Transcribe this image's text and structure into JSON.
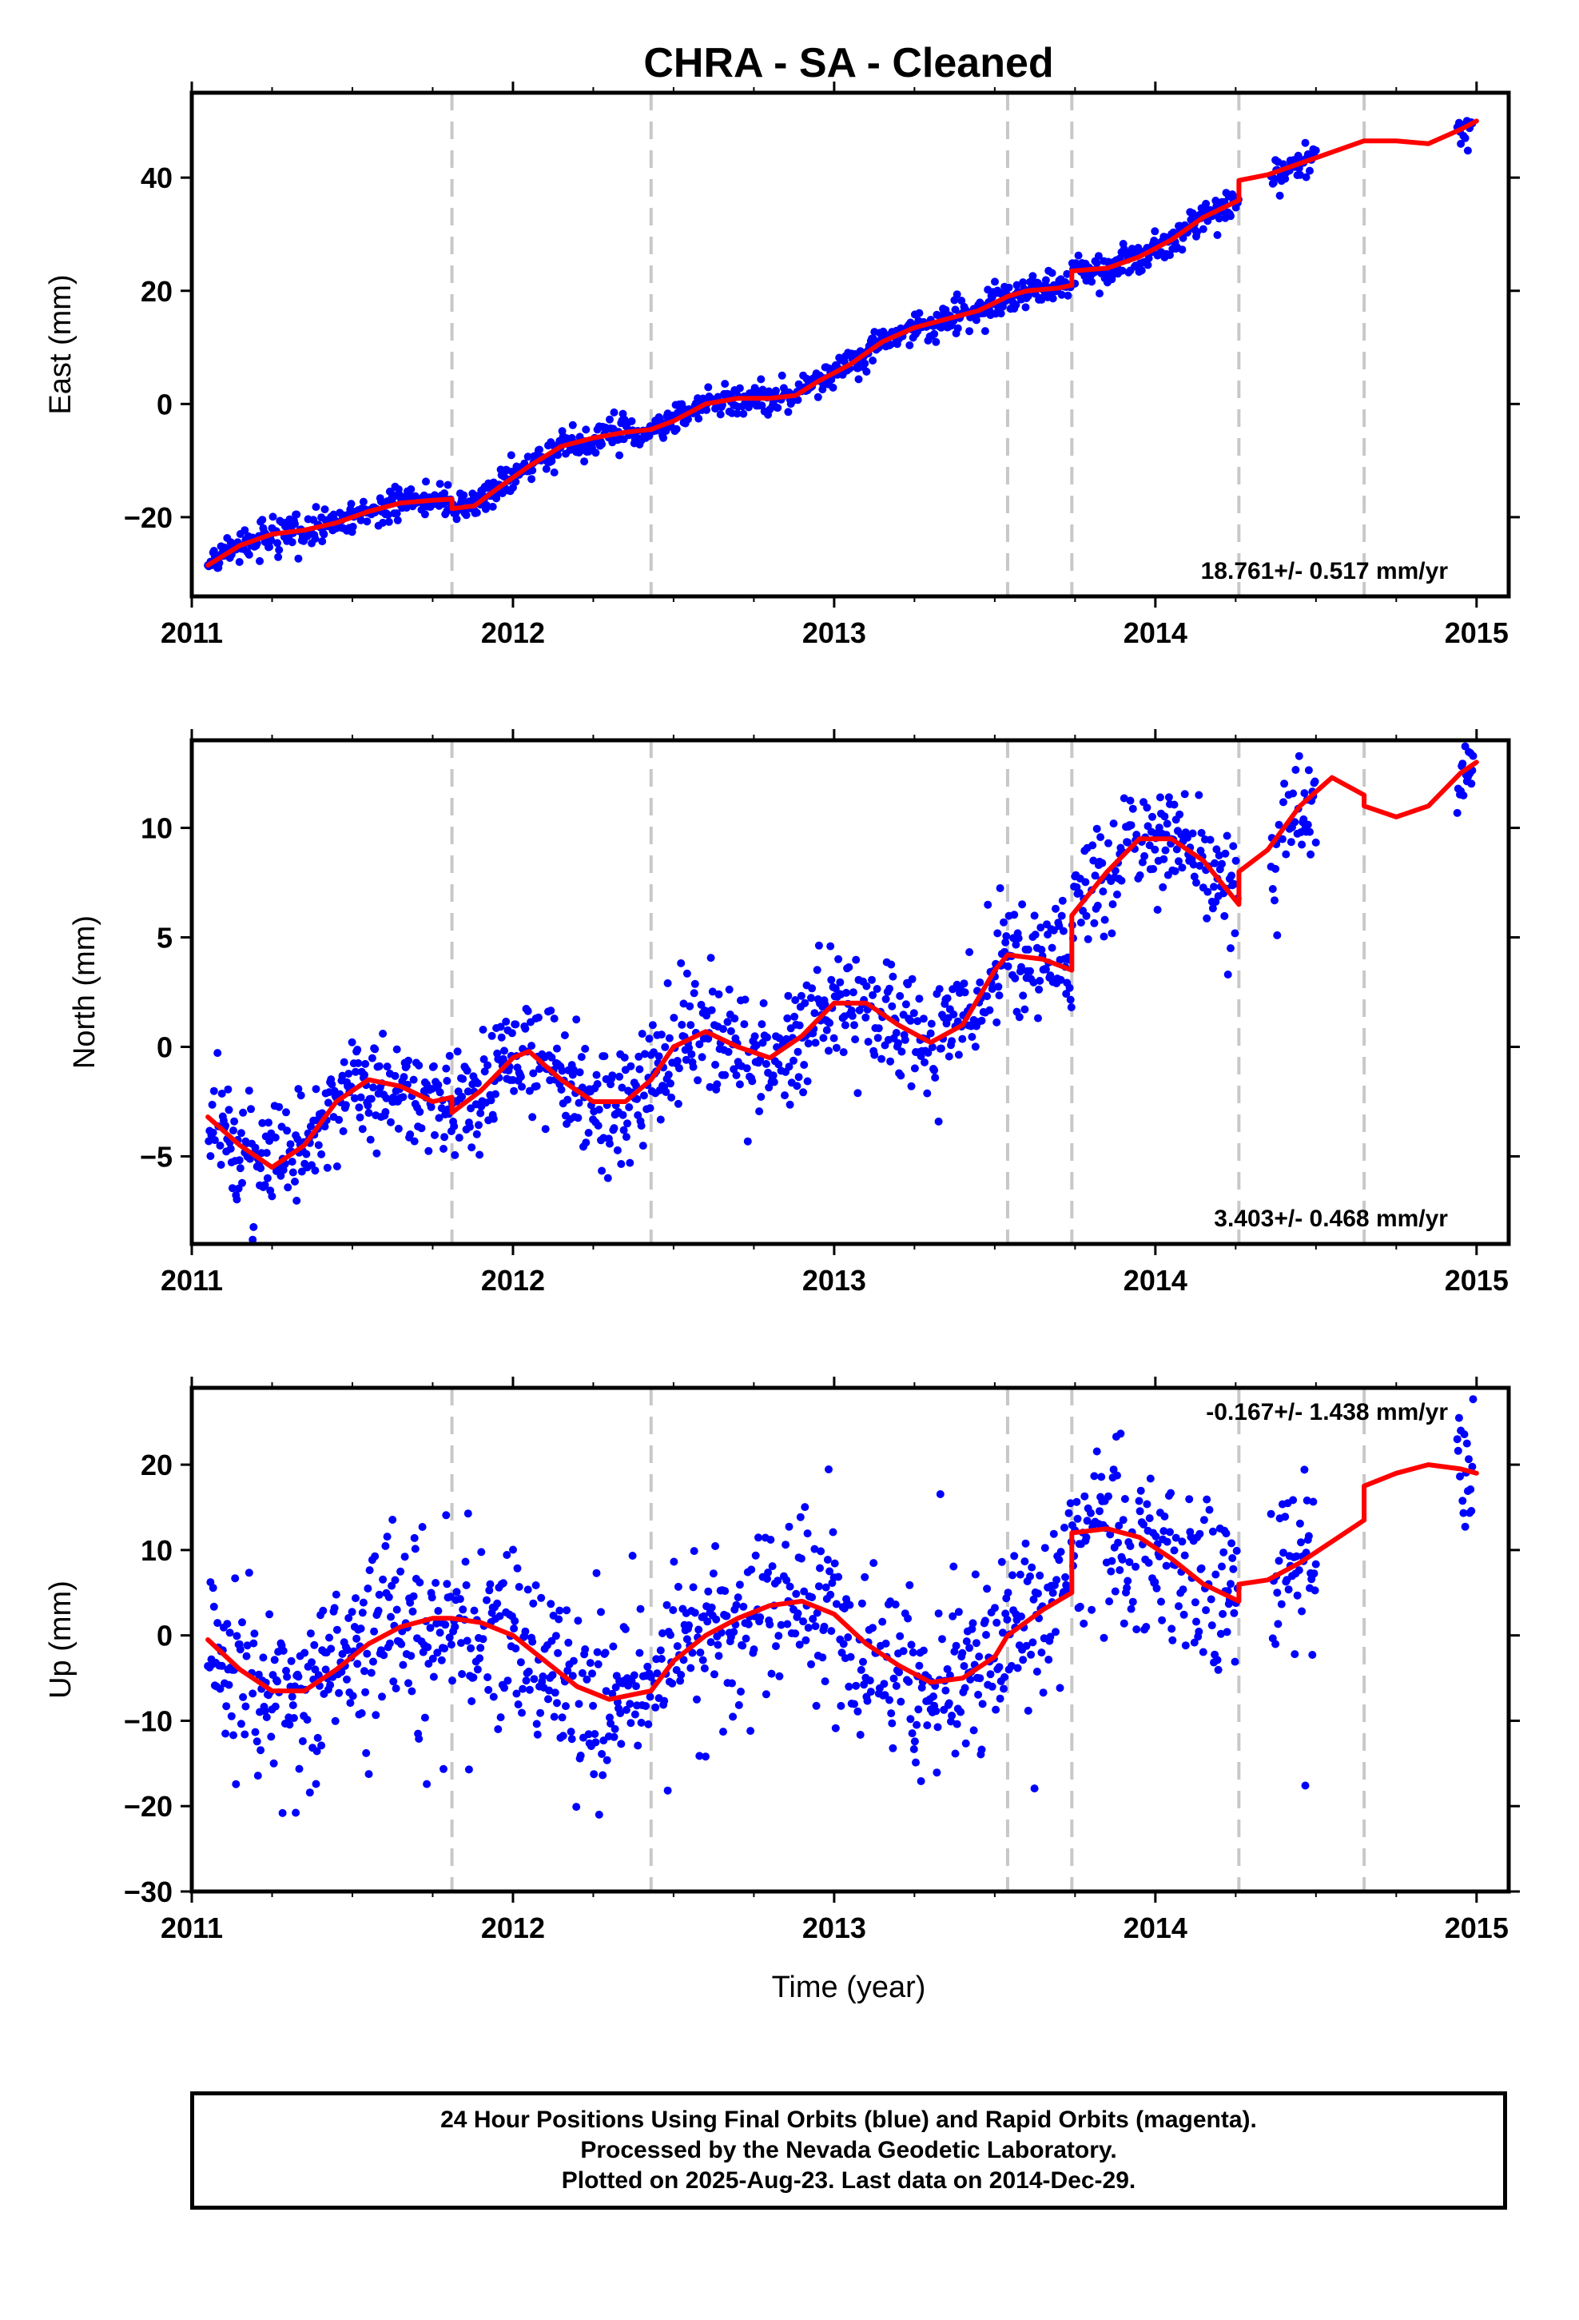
{
  "title": "CHRA  - SA - Cleaned",
  "footer": {
    "line1": "24 Hour Positions Using Final Orbits (blue) and Rapid Orbits (magenta).",
    "line2": "Processed by the Nevada Geodetic Laboratory.",
    "line3": "Plotted on 2025-Aug-23. Last data on 2014-Dec-29."
  },
  "colors": {
    "points": "#0000ff",
    "model": "#ff0000",
    "breaks": "#c8c8c8",
    "frame": "#000000"
  },
  "chart_data": [
    {
      "type": "scatter",
      "name": "east",
      "ylabel": "East (mm)",
      "xlabel": "",
      "xlim": [
        2011.0,
        2015.1
      ],
      "ylim": [
        -34,
        55
      ],
      "xticks": [
        "2011",
        "2012",
        "2013",
        "2014",
        "2015"
      ],
      "yticks": [
        "−20",
        "0",
        "20",
        "40"
      ],
      "ytick_values": [
        -20,
        0,
        20,
        40
      ],
      "rate_label": "18.761+/- 0.517 mm/yr",
      "rate_position": "bottom-right",
      "breaks": [
        2011.81,
        2012.43,
        2013.54,
        2013.74,
        2014.26,
        2014.65
      ],
      "data_ranges": [
        [
          2011.05,
          2014.26
        ],
        [
          2014.36,
          2014.5
        ],
        [
          2014.94,
          2014.99
        ]
      ],
      "points_summary": "daily positions closely following the model; scatter about 1.5 mm",
      "model": [
        [
          2011.05,
          -28.5
        ],
        [
          2011.15,
          -25.0
        ],
        [
          2011.25,
          -23.0
        ],
        [
          2011.35,
          -22.3
        ],
        [
          2011.45,
          -21.0
        ],
        [
          2011.55,
          -19.0
        ],
        [
          2011.65,
          -17.5
        ],
        [
          2011.75,
          -17.0
        ],
        [
          2011.81,
          -16.8
        ],
        [
          2011.81,
          -18.5
        ],
        [
          2011.88,
          -18.0
        ],
        [
          2011.95,
          -15.0
        ],
        [
          2012.05,
          -11.0
        ],
        [
          2012.15,
          -7.5
        ],
        [
          2012.25,
          -6.0
        ],
        [
          2012.35,
          -5.0
        ],
        [
          2012.43,
          -4.5
        ],
        [
          2012.5,
          -3.0
        ],
        [
          2012.6,
          0.0
        ],
        [
          2012.7,
          1.0
        ],
        [
          2012.8,
          1.0
        ],
        [
          2012.88,
          1.5
        ],
        [
          2012.95,
          4.0
        ],
        [
          2013.05,
          7.0
        ],
        [
          2013.15,
          11.0
        ],
        [
          2013.25,
          13.5
        ],
        [
          2013.35,
          15.0
        ],
        [
          2013.45,
          16.5
        ],
        [
          2013.54,
          19.0
        ],
        [
          2013.6,
          20.0
        ],
        [
          2013.7,
          20.5
        ],
        [
          2013.74,
          21.0
        ],
        [
          2013.74,
          23.5
        ],
        [
          2013.85,
          24.0
        ],
        [
          2013.95,
          26.0
        ],
        [
          2014.05,
          29.0
        ],
        [
          2014.15,
          33.0
        ],
        [
          2014.26,
          36.0
        ],
        [
          2014.26,
          39.5
        ],
        [
          2014.35,
          40.5
        ],
        [
          2014.45,
          42.5
        ],
        [
          2014.55,
          44.5
        ],
        [
          2014.65,
          46.5
        ],
        [
          2014.75,
          46.5
        ],
        [
          2014.85,
          46.0
        ],
        [
          2014.95,
          48.5
        ],
        [
          2015.0,
          50.0
        ]
      ]
    },
    {
      "type": "scatter",
      "name": "north",
      "ylabel": "North (mm)",
      "xlabel": "",
      "xlim": [
        2011.0,
        2015.1
      ],
      "ylim": [
        -9,
        14
      ],
      "xticks": [
        "2011",
        "2012",
        "2013",
        "2014",
        "2015"
      ],
      "yticks": [
        "−5",
        "0",
        "5",
        "10"
      ],
      "ytick_values": [
        -5,
        0,
        5,
        10
      ],
      "rate_label": "3.403+/- 0.468 mm/yr",
      "rate_position": "bottom-right",
      "breaks": [
        2011.81,
        2012.43,
        2013.54,
        2013.74,
        2014.26,
        2014.65
      ],
      "data_ranges": [
        [
          2011.05,
          2014.26
        ],
        [
          2014.36,
          2014.5
        ],
        [
          2014.94,
          2014.99
        ]
      ],
      "points_summary": "daily positions with scatter about 1.3 mm around the model",
      "model": [
        [
          2011.05,
          -3.2
        ],
        [
          2011.15,
          -4.5
        ],
        [
          2011.25,
          -5.5
        ],
        [
          2011.35,
          -4.5
        ],
        [
          2011.45,
          -2.5
        ],
        [
          2011.55,
          -1.5
        ],
        [
          2011.65,
          -1.8
        ],
        [
          2011.75,
          -2.5
        ],
        [
          2011.81,
          -2.3
        ],
        [
          2011.81,
          -3.0
        ],
        [
          2011.9,
          -2.0
        ],
        [
          2012.0,
          -0.5
        ],
        [
          2012.05,
          -0.2
        ],
        [
          2012.15,
          -1.5
        ],
        [
          2012.25,
          -2.5
        ],
        [
          2012.35,
          -2.5
        ],
        [
          2012.43,
          -1.5
        ],
        [
          2012.5,
          0.0
        ],
        [
          2012.6,
          0.7
        ],
        [
          2012.7,
          0.0
        ],
        [
          2012.8,
          -0.5
        ],
        [
          2012.9,
          0.5
        ],
        [
          2013.0,
          2.0
        ],
        [
          2013.1,
          2.0
        ],
        [
          2013.2,
          1.0
        ],
        [
          2013.3,
          0.2
        ],
        [
          2013.4,
          1.0
        ],
        [
          2013.5,
          3.5
        ],
        [
          2013.54,
          4.2
        ],
        [
          2013.65,
          4.0
        ],
        [
          2013.74,
          3.5
        ],
        [
          2013.74,
          6.0
        ],
        [
          2013.85,
          8.0
        ],
        [
          2013.95,
          9.5
        ],
        [
          2014.05,
          9.5
        ],
        [
          2014.15,
          8.5
        ],
        [
          2014.26,
          6.5
        ],
        [
          2014.26,
          8.0
        ],
        [
          2014.35,
          9.0
        ],
        [
          2014.45,
          11.0
        ],
        [
          2014.55,
          12.3
        ],
        [
          2014.65,
          11.5
        ],
        [
          2014.65,
          11.0
        ],
        [
          2014.75,
          10.5
        ],
        [
          2014.85,
          11.0
        ],
        [
          2014.95,
          12.5
        ],
        [
          2015.0,
          13.0
        ]
      ]
    },
    {
      "type": "scatter",
      "name": "up",
      "ylabel": "Up (mm)",
      "xlabel": "Time (year)",
      "xlim": [
        2011.0,
        2015.1
      ],
      "ylim": [
        -30,
        29
      ],
      "xticks": [
        "2011",
        "2012",
        "2013",
        "2014",
        "2015"
      ],
      "yticks": [
        "−30",
        "−20",
        "−10",
        "0",
        "10",
        "20"
      ],
      "ytick_values": [
        -30,
        -20,
        -10,
        0,
        10,
        20
      ],
      "rate_label": "-0.167+/- 1.438 mm/yr",
      "rate_position": "top-right",
      "breaks": [
        2011.81,
        2012.43,
        2013.54,
        2013.74,
        2014.26,
        2014.65
      ],
      "data_ranges": [
        [
          2011.05,
          2014.26
        ],
        [
          2014.36,
          2014.5
        ],
        [
          2014.94,
          2014.99
        ]
      ],
      "points_summary": "daily positions with scatter about 5 mm around the model",
      "model": [
        [
          2011.05,
          -0.5
        ],
        [
          2011.15,
          -4.0
        ],
        [
          2011.25,
          -6.5
        ],
        [
          2011.35,
          -6.5
        ],
        [
          2011.45,
          -4.0
        ],
        [
          2011.55,
          -1.0
        ],
        [
          2011.65,
          1.0
        ],
        [
          2011.75,
          2.0
        ],
        [
          2011.81,
          2.0
        ],
        [
          2011.9,
          1.5
        ],
        [
          2012.0,
          0.0
        ],
        [
          2012.1,
          -3.0
        ],
        [
          2012.2,
          -6.0
        ],
        [
          2012.3,
          -7.5
        ],
        [
          2012.43,
          -6.5
        ],
        [
          2012.5,
          -3.0
        ],
        [
          2012.6,
          0.0
        ],
        [
          2012.7,
          2.0
        ],
        [
          2012.8,
          3.5
        ],
        [
          2012.9,
          4.0
        ],
        [
          2013.0,
          2.5
        ],
        [
          2013.1,
          -1.0
        ],
        [
          2013.2,
          -3.5
        ],
        [
          2013.3,
          -5.5
        ],
        [
          2013.4,
          -5.0
        ],
        [
          2013.5,
          -2.5
        ],
        [
          2013.54,
          0.0
        ],
        [
          2013.65,
          3.0
        ],
        [
          2013.74,
          5.0
        ],
        [
          2013.74,
          12.0
        ],
        [
          2013.85,
          12.5
        ],
        [
          2013.95,
          11.5
        ],
        [
          2014.05,
          9.0
        ],
        [
          2014.15,
          6.0
        ],
        [
          2014.26,
          4.0
        ],
        [
          2014.26,
          6.0
        ],
        [
          2014.35,
          6.5
        ],
        [
          2014.45,
          8.5
        ],
        [
          2014.55,
          11.0
        ],
        [
          2014.65,
          13.5
        ],
        [
          2014.65,
          17.5
        ],
        [
          2014.75,
          19.0
        ],
        [
          2014.85,
          20.0
        ],
        [
          2014.95,
          19.5
        ],
        [
          2015.0,
          19.0
        ]
      ]
    }
  ]
}
